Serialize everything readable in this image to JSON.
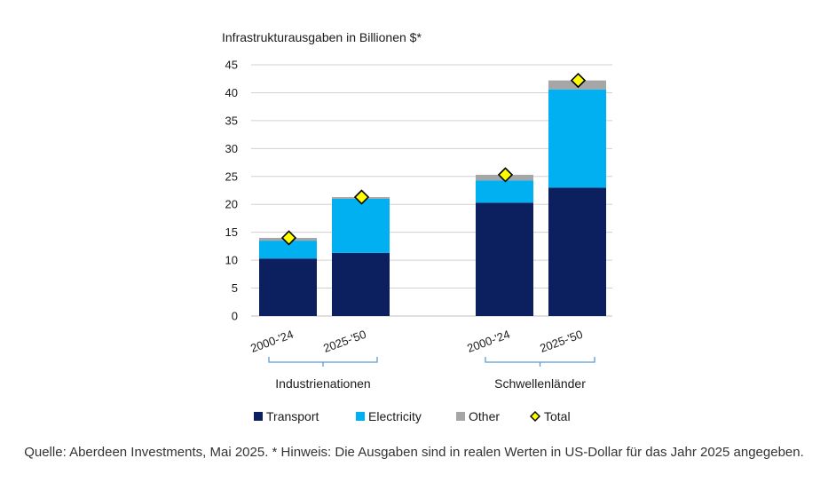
{
  "chart_data": {
    "type": "bar",
    "stacked": true,
    "title": "Infrastrukturausgaben in Billionen $*",
    "ylim": [
      0,
      45
    ],
    "yticks": [
      0,
      5,
      10,
      15,
      20,
      25,
      30,
      35,
      40,
      45
    ],
    "grid": true,
    "groups": [
      "Industrienationen",
      "Schwellenländer"
    ],
    "categories": [
      "2000-'24",
      "2025-'50",
      "2000-'24",
      "2025-'50"
    ],
    "category_group": [
      0,
      0,
      1,
      1
    ],
    "series": [
      {
        "name": "Transport",
        "color": "#0c2060",
        "values": [
          10.3,
          11.3,
          20.3,
          23.0
        ]
      },
      {
        "name": "Electricity",
        "color": "#00b0f0",
        "values": [
          3.2,
          9.7,
          4.0,
          17.6
        ]
      },
      {
        "name": "Other",
        "color": "#a6a6a6",
        "values": [
          0.5,
          0.3,
          1.0,
          1.6
        ]
      }
    ],
    "total": {
      "name": "Total",
      "marker": "diamond",
      "color": "#ffff00",
      "values": [
        14.0,
        21.3,
        25.3,
        42.2
      ]
    },
    "legend_position": "bottom"
  },
  "caption": "Quelle: Aberdeen Investments, Mai 2025. * Hinweis: Die Ausgaben sind in realen Werten in US-Dollar für das Jahr 2025 angegeben."
}
